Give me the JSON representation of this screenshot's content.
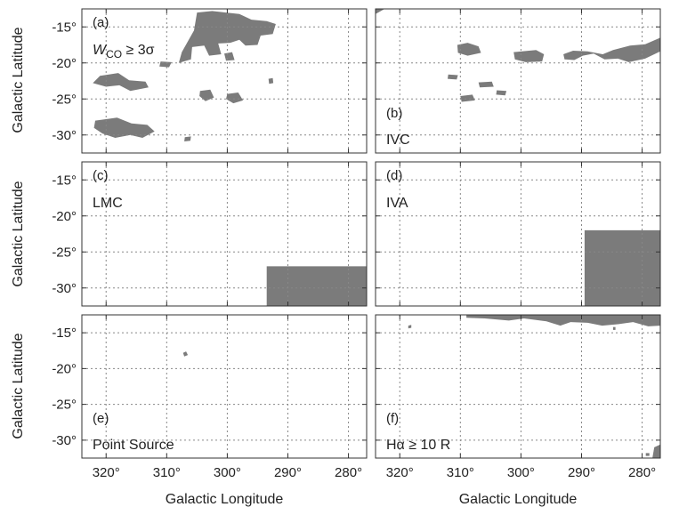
{
  "figure": {
    "x_axis_title": "Galactic Longitude",
    "y_axis_title": "Galactic Latitude",
    "region_color": "#7b7b7b"
  },
  "chart_data": {
    "type": "map",
    "xlim": [
      324,
      277
    ],
    "ylim": [
      -32.5,
      -12.5
    ],
    "xticks": [
      320,
      310,
      300,
      290,
      280
    ],
    "xtick_labels": [
      "320°",
      "310°",
      "300°",
      "290°",
      "280°"
    ],
    "yticks": [
      -15,
      -20,
      -25,
      -30
    ],
    "ytick_labels": [
      "-15°",
      "-20°",
      "-25°",
      "-30°"
    ],
    "grid": true,
    "panels": [
      {
        "id": "a",
        "tag": "(a)",
        "label": "W_CO ≥ 3σ",
        "label_main": "W",
        "label_sub": "CO",
        "label_rest": " ≥ 3σ",
        "label_position": "top-left",
        "regions": [
          [
            [
              305.0,
              -13.0
            ],
            [
              302.5,
              -12.8
            ],
            [
              298.0,
              -13.2
            ],
            [
              296.0,
              -14.0
            ],
            [
              293.5,
              -14.2
            ],
            [
              292.0,
              -14.6
            ],
            [
              292.5,
              -16.0
            ],
            [
              294.5,
              -16.2
            ],
            [
              295.0,
              -17.5
            ],
            [
              297.0,
              -17.6
            ],
            [
              298.0,
              -16.8
            ],
            [
              299.5,
              -17.2
            ],
            [
              301.5,
              -17.3
            ],
            [
              301.0,
              -18.8
            ],
            [
              303.0,
              -19.0
            ],
            [
              303.8,
              -17.6
            ],
            [
              305.8,
              -17.8
            ],
            [
              306.0,
              -19.5
            ],
            [
              308.0,
              -20.0
            ],
            [
              307.5,
              -18.5
            ],
            [
              306.5,
              -17.0
            ],
            [
              305.5,
              -15.5
            ]
          ],
          [
            [
              300.5,
              -18.7
            ],
            [
              299.2,
              -18.5
            ],
            [
              298.8,
              -19.6
            ],
            [
              300.2,
              -19.7
            ]
          ],
          [
            [
              311.0,
              -19.8
            ],
            [
              309.2,
              -19.9
            ],
            [
              309.6,
              -20.6
            ],
            [
              311.2,
              -20.5
            ]
          ],
          [
            [
              321.0,
              -21.8
            ],
            [
              318.0,
              -21.4
            ],
            [
              316.2,
              -22.4
            ],
            [
              313.5,
              -22.6
            ],
            [
              313.0,
              -23.4
            ],
            [
              316.0,
              -23.9
            ],
            [
              317.8,
              -23.1
            ],
            [
              320.0,
              -23.3
            ],
            [
              322.2,
              -22.8
            ]
          ],
          [
            [
              304.5,
              -23.9
            ],
            [
              302.8,
              -23.7
            ],
            [
              302.2,
              -24.8
            ],
            [
              303.6,
              -25.3
            ],
            [
              304.6,
              -24.6
            ]
          ],
          [
            [
              300.0,
              -24.3
            ],
            [
              298.2,
              -24.1
            ],
            [
              297.4,
              -25.2
            ],
            [
              299.0,
              -25.6
            ],
            [
              300.2,
              -25.0
            ]
          ],
          [
            [
              321.8,
              -28.0
            ],
            [
              318.2,
              -27.6
            ],
            [
              315.8,
              -28.4
            ],
            [
              313.2,
              -28.6
            ],
            [
              312.0,
              -29.5
            ],
            [
              314.0,
              -30.4
            ],
            [
              316.0,
              -30.0
            ],
            [
              318.5,
              -30.4
            ],
            [
              320.6,
              -29.8
            ],
            [
              322.0,
              -29.0
            ]
          ],
          [
            [
              293.2,
              -22.2
            ],
            [
              292.5,
              -22.1
            ],
            [
              292.4,
              -22.8
            ],
            [
              293.1,
              -22.9
            ]
          ],
          [
            [
              307.0,
              -30.3
            ],
            [
              306.0,
              -30.2
            ],
            [
              306.1,
              -30.8
            ],
            [
              307.1,
              -30.9
            ]
          ]
        ]
      },
      {
        "id": "b",
        "tag": "(b)",
        "label": "IVC",
        "label_position": "bottom-left",
        "regions": [
          [
            [
              324.0,
              -13.2
            ],
            [
              322.5,
              -12.5
            ],
            [
              324.0,
              -12.5
            ]
          ],
          [
            [
              310.5,
              -17.5
            ],
            [
              308.8,
              -17.2
            ],
            [
              307.0,
              -17.7
            ],
            [
              306.6,
              -18.6
            ],
            [
              308.8,
              -19.0
            ],
            [
              310.4,
              -18.6
            ]
          ],
          [
            [
              301.2,
              -18.5
            ],
            [
              297.5,
              -18.2
            ],
            [
              296.2,
              -18.8
            ],
            [
              296.5,
              -19.8
            ],
            [
              299.2,
              -19.9
            ],
            [
              301.0,
              -19.5
            ]
          ],
          [
            [
              293.0,
              -18.8
            ],
            [
              291.4,
              -18.3
            ],
            [
              289.0,
              -18.4
            ],
            [
              286.5,
              -18.8
            ],
            [
              284.8,
              -18.2
            ],
            [
              282.0,
              -17.6
            ],
            [
              279.5,
              -17.4
            ],
            [
              277.0,
              -16.5
            ],
            [
              277.0,
              -18.4
            ],
            [
              279.5,
              -19.4
            ],
            [
              282.2,
              -19.9
            ],
            [
              284.0,
              -19.4
            ],
            [
              286.2,
              -19.5
            ],
            [
              288.0,
              -18.7
            ],
            [
              289.8,
              -19.0
            ],
            [
              291.2,
              -19.6
            ],
            [
              292.8,
              -19.5
            ]
          ],
          [
            [
              312.0,
              -21.6
            ],
            [
              310.4,
              -21.7
            ],
            [
              310.6,
              -22.3
            ],
            [
              312.1,
              -22.2
            ]
          ],
          [
            [
              307.0,
              -22.7
            ],
            [
              304.8,
              -22.6
            ],
            [
              304.5,
              -23.3
            ],
            [
              306.8,
              -23.4
            ]
          ],
          [
            [
              304.0,
              -23.8
            ],
            [
              302.4,
              -23.9
            ],
            [
              302.6,
              -24.5
            ],
            [
              304.1,
              -24.4
            ]
          ],
          [
            [
              310.0,
              -24.6
            ],
            [
              308.0,
              -24.4
            ],
            [
              307.6,
              -25.2
            ],
            [
              309.8,
              -25.4
            ]
          ]
        ]
      },
      {
        "id": "c",
        "tag": "(c)",
        "label": "LMC",
        "label_position": "top-left",
        "regions": [
          [
            [
              293.5,
              -27.0
            ],
            [
              277.0,
              -27.0
            ],
            [
              277.0,
              -32.5
            ],
            [
              293.5,
              -32.5
            ]
          ]
        ]
      },
      {
        "id": "d",
        "tag": "(d)",
        "label": "IVA",
        "label_position": "top-left",
        "regions": [
          [
            [
              289.5,
              -22.0
            ],
            [
              277.0,
              -22.0
            ],
            [
              277.0,
              -32.5
            ],
            [
              289.5,
              -32.5
            ]
          ]
        ]
      },
      {
        "id": "e",
        "tag": "(e)",
        "label": "Point Source",
        "label_position": "bottom-left",
        "regions": [
          [
            [
              307.3,
              -17.8
            ],
            [
              306.8,
              -17.6
            ],
            [
              306.5,
              -18.1
            ],
            [
              307.1,
              -18.3
            ]
          ]
        ]
      },
      {
        "id": "f",
        "tag": "(f)",
        "label": "Hα ≥ 10 R",
        "label_position": "bottom-left",
        "regions": [
          [
            [
              309.0,
              -12.5
            ],
            [
              277.0,
              -12.5
            ],
            [
              277.0,
              -14.0
            ],
            [
              279.0,
              -14.1
            ],
            [
              281.5,
              -13.5
            ],
            [
              284.0,
              -13.8
            ],
            [
              286.6,
              -14.0
            ],
            [
              289.0,
              -13.6
            ],
            [
              291.8,
              -13.5
            ],
            [
              293.5,
              -14.0
            ],
            [
              295.8,
              -13.4
            ],
            [
              299.5,
              -13.0
            ],
            [
              302.0,
              -13.3
            ],
            [
              306.0,
              -13.0
            ],
            [
              309.0,
              -12.9
            ]
          ],
          [
            [
              318.6,
              -14.0
            ],
            [
              318.1,
              -13.9
            ],
            [
              318.1,
              -14.3
            ],
            [
              318.6,
              -14.4
            ]
          ],
          [
            [
              284.8,
              -14.2
            ],
            [
              284.4,
              -14.2
            ],
            [
              284.4,
              -14.6
            ],
            [
              284.8,
              -14.6
            ]
          ],
          [
            [
              278.0,
              -31.0
            ],
            [
              277.0,
              -30.6
            ],
            [
              277.0,
              -32.5
            ],
            [
              278.3,
              -32.5
            ]
          ],
          [
            [
              279.4,
              -31.8
            ],
            [
              278.8,
              -31.8
            ],
            [
              278.8,
              -32.2
            ],
            [
              279.4,
              -32.2
            ]
          ]
        ]
      }
    ]
  }
}
